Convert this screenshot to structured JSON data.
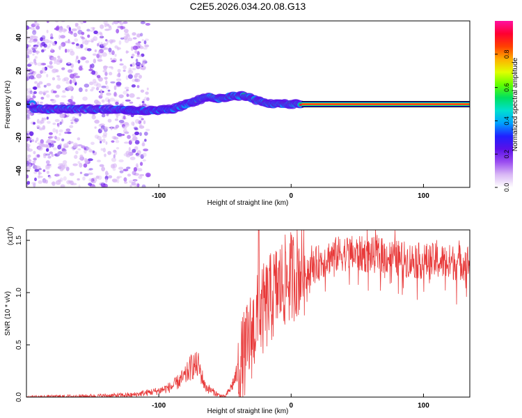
{
  "title": "C2E5.2026.034.20.08.G13",
  "chart_data": [
    {
      "type": "heatmap",
      "id": "spectrogram",
      "xlabel": "Height of straight line (km)",
      "ylabel": "Frequency (Hz)",
      "xlim": [
        -200,
        135
      ],
      "ylim": [
        -50,
        50
      ],
      "x_ticks": [
        -100,
        0,
        100
      ],
      "y_ticks": [
        -40,
        -20,
        0,
        20,
        40
      ],
      "colorbar": {
        "label": "Normalized spectral amplitude",
        "range": [
          0,
          1
        ],
        "ticks": [
          0.0,
          0.2,
          0.4,
          0.6,
          0.8
        ],
        "colormap": [
          "#ffffff",
          "#d9b8f5",
          "#9a4cf0",
          "#5a10e8",
          "#2020ff",
          "#00a0ff",
          "#00e0d0",
          "#00e060",
          "#60ff00",
          "#e0ff00",
          "#ffb000",
          "#ff4000",
          "#ff0030",
          "#ff10a0"
        ]
      },
      "signal_track": {
        "description_points_x": [
          -195,
          -150,
          -130,
          -110,
          -90,
          -75,
          -62,
          -55,
          -45,
          -35,
          -25,
          -15,
          0,
          10,
          135
        ],
        "description_points_y": [
          -3,
          -3,
          -3,
          -4,
          -3,
          1,
          5,
          3,
          5,
          5,
          2,
          0,
          0,
          0,
          0
        ],
        "constant_line_from_x": 8,
        "constant_line_freq": 0
      },
      "noise_region_x": [
        -200,
        -120
      ]
    },
    {
      "type": "line",
      "id": "snr",
      "xlabel": "Height of straight line (km)",
      "ylabel": "SNR (10 * v/v)",
      "y_multiplier": "(x10",
      "y_multiplier_exp": "4",
      "y_multiplier_close": ")",
      "xlim": [
        -200,
        135
      ],
      "ylim": [
        0,
        1.6
      ],
      "x_ticks": [
        -100,
        0,
        100
      ],
      "y_ticks": [
        "0.0",
        "0.5",
        "1.0",
        "1.5"
      ],
      "series_color": "#e83a3a",
      "envelope_x": [
        -200,
        -150,
        -120,
        -110,
        -100,
        -90,
        -80,
        -75,
        -70,
        -65,
        -55,
        -50,
        -45,
        -40,
        -35,
        -30,
        -25,
        -20,
        -15,
        -10,
        -5,
        0,
        10,
        20,
        30,
        40,
        50,
        60,
        70,
        80,
        90,
        100,
        110,
        120,
        130,
        135
      ],
      "envelope_y": [
        0.0,
        0.01,
        0.02,
        0.04,
        0.06,
        0.1,
        0.2,
        0.3,
        0.3,
        0.1,
        0.02,
        0.0,
        0.1,
        0.25,
        0.4,
        0.6,
        0.75,
        0.85,
        0.95,
        1.05,
        1.1,
        1.15,
        1.25,
        1.35,
        1.42,
        1.45,
        1.44,
        1.43,
        1.42,
        1.4,
        1.38,
        1.37,
        1.37,
        1.36,
        1.36,
        1.36
      ]
    }
  ]
}
